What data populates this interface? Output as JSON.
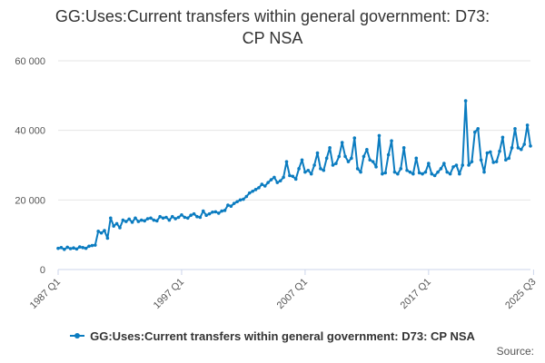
{
  "page": {
    "title_line1": "GG:Uses:Current transfers within general government: D73:",
    "title_line2": "CP NSA",
    "source_label": "Source:"
  },
  "colors": {
    "series": "#0b7cc0",
    "grid": "#e6e6e6",
    "axis": "#ccd6eb"
  },
  "chart_data": {
    "type": "line",
    "title": "GG:Uses:Current transfers within general government: D73: CP NSA",
    "xlabel": "",
    "ylabel": "",
    "ylim": [
      0,
      60000
    ],
    "yticks": [
      0,
      20000,
      40000,
      60000
    ],
    "ytick_labels": [
      "0",
      "20 000",
      "40 000",
      "60 000"
    ],
    "xticks": [
      {
        "label": "1987 Q1",
        "quarter_index": 0
      },
      {
        "label": "1997 Q1",
        "quarter_index": 40
      },
      {
        "label": "2007 Q1",
        "quarter_index": 80
      },
      {
        "label": "2017 Q1",
        "quarter_index": 120
      },
      {
        "label": "2025 Q3",
        "quarter_index": 154
      }
    ],
    "x_start": "1987 Q1",
    "grid": true,
    "legend_position": "bottom",
    "series": [
      {
        "name": "GG:Uses:Current transfers within general government: D73: CP NSA",
        "values": [
          6100,
          6300,
          5800,
          6400,
          6000,
          6200,
          5900,
          6500,
          6300,
          6100,
          6700,
          6900,
          7000,
          11000,
          10500,
          11200,
          9000,
          14800,
          12500,
          13200,
          12000,
          14200,
          13800,
          14500,
          13600,
          14800,
          13800,
          14200,
          14000,
          14600,
          14800,
          14200,
          14000,
          15200,
          14800,
          15000,
          14200,
          15200,
          14600,
          15000,
          15700,
          15000,
          14800,
          15600,
          16000,
          15200,
          15000,
          16800,
          15600,
          16000,
          16500,
          16600,
          16200,
          16800,
          17000,
          18500,
          18200,
          19000,
          19500,
          20000,
          20200,
          21000,
          22000,
          22500,
          23000,
          23500,
          24500,
          24000,
          25000,
          25800,
          26500,
          25000,
          25500,
          26500,
          31000,
          27000,
          26800,
          26000,
          29000,
          31500,
          28000,
          28500,
          27500,
          30000,
          33500,
          29000,
          28500,
          32000,
          35000,
          30000,
          30500,
          32500,
          36500,
          32500,
          31000,
          32000,
          37800,
          29000,
          28000,
          32500,
          34500,
          31500,
          31000,
          29500,
          38500,
          27500,
          27800,
          33000,
          37000,
          28000,
          27500,
          29000,
          35000,
          28500,
          28000,
          27500,
          32000,
          27800,
          27500,
          28000,
          30500,
          27500,
          27000,
          28000,
          29000,
          30500,
          28000,
          27500,
          29500,
          30000,
          27500,
          30000,
          48500,
          30000,
          31000,
          39500,
          40500,
          31500,
          28000,
          33500,
          33800,
          30800,
          31000,
          34000,
          38000,
          31500,
          32000,
          35000,
          40500,
          35000,
          34500,
          36000,
          41500,
          35500
        ]
      }
    ]
  }
}
